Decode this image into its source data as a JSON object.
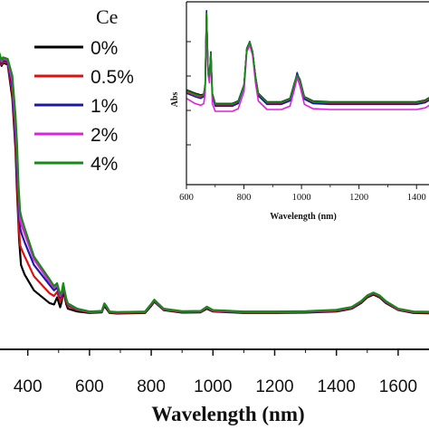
{
  "chart_data": [
    {
      "type": "line",
      "title": "",
      "xlabel": "Wavelength (nm)",
      "ylabel": "",
      "xlim": [
        310,
        1700
      ],
      "ylim": [
        0,
        1
      ],
      "x_ticks": [
        "400",
        "600",
        "800",
        "1000",
        "1200",
        "1400",
        "1600"
      ],
      "legend": {
        "title": "Ce",
        "placement": "top-left"
      },
      "series": [
        {
          "name": "0%",
          "color": "#000000",
          "x": [
            300,
            305,
            315,
            320,
            335,
            350,
            360,
            365,
            372,
            378,
            383,
            390,
            420,
            470,
            485,
            495,
            505,
            510,
            515,
            520,
            525,
            530,
            560,
            600,
            640,
            648,
            655,
            665,
            690,
            780,
            800,
            810,
            820,
            840,
            900,
            960,
            980,
            1000,
            1100,
            1200,
            1300,
            1400,
            1450,
            1480,
            1500,
            1520,
            1540,
            1560,
            1600,
            1650,
            1700
          ],
          "y": [
            0.92,
            0.93,
            0.895,
            0.905,
            0.9,
            0.78,
            0.6,
            0.45,
            0.28,
            0.19,
            0.175,
            0.155,
            0.1,
            0.055,
            0.05,
            0.075,
            0.04,
            0.06,
            0.1,
            0.075,
            0.05,
            0.035,
            0.025,
            0.02,
            0.022,
            0.045,
            0.035,
            0.02,
            0.018,
            0.02,
            0.045,
            0.06,
            0.05,
            0.03,
            0.021,
            0.022,
            0.035,
            0.025,
            0.02,
            0.02,
            0.021,
            0.025,
            0.035,
            0.055,
            0.075,
            0.085,
            0.075,
            0.055,
            0.03,
            0.02,
            0.019
          ]
        },
        {
          "name": "0.5%",
          "color": "#e01010",
          "x": [
            300,
            305,
            315,
            320,
            335,
            350,
            360,
            365,
            370,
            375,
            380,
            390,
            420,
            470,
            485,
            495,
            505,
            510,
            515,
            520,
            525,
            530,
            560,
            600,
            640,
            648,
            655,
            665,
            690,
            780,
            800,
            810,
            820,
            840,
            900,
            960,
            980,
            1000,
            1100,
            1200,
            1300,
            1400,
            1450,
            1480,
            1500,
            1520,
            1540,
            1560,
            1600,
            1650,
            1700
          ],
          "y": [
            0.925,
            0.935,
            0.9,
            0.91,
            0.905,
            0.8,
            0.63,
            0.5,
            0.34,
            0.26,
            0.245,
            0.22,
            0.15,
            0.09,
            0.08,
            0.095,
            0.06,
            0.075,
            0.11,
            0.085,
            0.06,
            0.045,
            0.03,
            0.022,
            0.024,
            0.05,
            0.04,
            0.022,
            0.02,
            0.022,
            0.048,
            0.063,
            0.052,
            0.032,
            0.023,
            0.024,
            0.038,
            0.027,
            0.022,
            0.022,
            0.023,
            0.027,
            0.037,
            0.058,
            0.078,
            0.088,
            0.078,
            0.058,
            0.032,
            0.022,
            0.021
          ]
        },
        {
          "name": "1%",
          "color": "#1a1aa8",
          "x": [
            300,
            305,
            315,
            320,
            335,
            350,
            360,
            365,
            370,
            375,
            380,
            390,
            420,
            470,
            485,
            495,
            505,
            510,
            515,
            520,
            525,
            530,
            560,
            600,
            640,
            648,
            655,
            665,
            690,
            780,
            800,
            810,
            820,
            840,
            900,
            960,
            980,
            1000,
            1100,
            1200,
            1300,
            1400,
            1450,
            1480,
            1500,
            1520,
            1540,
            1560,
            1600,
            1650,
            1700
          ],
          "y": [
            0.93,
            0.94,
            0.905,
            0.915,
            0.91,
            0.82,
            0.66,
            0.55,
            0.4,
            0.32,
            0.3,
            0.27,
            0.19,
            0.12,
            0.1,
            0.11,
            0.075,
            0.085,
            0.115,
            0.09,
            0.065,
            0.05,
            0.033,
            0.024,
            0.026,
            0.052,
            0.042,
            0.024,
            0.022,
            0.024,
            0.05,
            0.065,
            0.054,
            0.034,
            0.025,
            0.026,
            0.04,
            0.029,
            0.024,
            0.024,
            0.025,
            0.029,
            0.039,
            0.06,
            0.08,
            0.09,
            0.08,
            0.06,
            0.034,
            0.024,
            0.023
          ]
        },
        {
          "name": "2%",
          "color": "#e020e0",
          "x": [
            300,
            305,
            315,
            320,
            335,
            350,
            360,
            365,
            370,
            375,
            380,
            390,
            420,
            470,
            485,
            495,
            505,
            510,
            515,
            520,
            525,
            530,
            560,
            600,
            640,
            648,
            655,
            665,
            690,
            780,
            800,
            810,
            820,
            840,
            900,
            960,
            980,
            1000,
            1100,
            1200,
            1300,
            1400,
            1450,
            1480,
            1500,
            1520,
            1540,
            1560,
            1600,
            1650,
            1700
          ],
          "y": [
            0.935,
            0.945,
            0.91,
            0.92,
            0.915,
            0.84,
            0.69,
            0.58,
            0.44,
            0.35,
            0.33,
            0.3,
            0.21,
            0.13,
            0.11,
            0.12,
            0.08,
            0.09,
            0.12,
            0.092,
            0.067,
            0.052,
            0.034,
            0.024,
            0.026,
            0.053,
            0.043,
            0.024,
            0.022,
            0.024,
            0.051,
            0.066,
            0.055,
            0.034,
            0.025,
            0.026,
            0.041,
            0.029,
            0.024,
            0.024,
            0.025,
            0.03,
            0.04,
            0.061,
            0.081,
            0.091,
            0.081,
            0.061,
            0.034,
            0.024,
            0.023
          ]
        },
        {
          "name": "4%",
          "color": "#158a15",
          "x": [
            300,
            305,
            315,
            320,
            335,
            350,
            360,
            365,
            370,
            375,
            380,
            390,
            420,
            470,
            485,
            495,
            505,
            510,
            515,
            520,
            525,
            530,
            560,
            600,
            640,
            648,
            655,
            665,
            690,
            780,
            800,
            810,
            820,
            840,
            900,
            960,
            980,
            1000,
            1100,
            1200,
            1300,
            1400,
            1450,
            1480,
            1500,
            1520,
            1540,
            1560,
            1600,
            1650,
            1700
          ],
          "y": [
            0.94,
            0.95,
            0.915,
            0.925,
            0.92,
            0.86,
            0.72,
            0.62,
            0.47,
            0.38,
            0.355,
            0.32,
            0.22,
            0.14,
            0.115,
            0.125,
            0.085,
            0.095,
            0.125,
            0.095,
            0.07,
            0.054,
            0.035,
            0.025,
            0.027,
            0.054,
            0.044,
            0.025,
            0.023,
            0.025,
            0.052,
            0.067,
            0.056,
            0.035,
            0.026,
            0.027,
            0.042,
            0.03,
            0.025,
            0.025,
            0.026,
            0.031,
            0.041,
            0.062,
            0.082,
            0.092,
            0.082,
            0.062,
            0.035,
            0.025,
            0.024
          ]
        }
      ]
    },
    {
      "type": "line",
      "title": "",
      "xlabel": "Wavelength (nm)",
      "ylabel": "Abs",
      "xlim": [
        600,
        1500
      ],
      "ylim": [
        0,
        1
      ],
      "x_ticks": [
        "600",
        "800",
        "1000",
        "1200",
        "1400"
      ],
      "legend": null,
      "series": [
        {
          "color": "#000000",
          "x": [
            600,
            630,
            650,
            660,
            665,
            670,
            675,
            680,
            685,
            690,
            700,
            760,
            780,
            800,
            810,
            820,
            830,
            840,
            850,
            880,
            930,
            960,
            975,
            985,
            995,
            1010,
            1040,
            1100,
            1200,
            1300,
            1400,
            1430,
            1450,
            1470,
            1490,
            1500
          ],
          "y": [
            0.52,
            0.5,
            0.49,
            0.495,
            0.55,
            0.97,
            0.65,
            0.6,
            0.74,
            0.5,
            0.44,
            0.44,
            0.455,
            0.55,
            0.76,
            0.8,
            0.74,
            0.6,
            0.5,
            0.45,
            0.45,
            0.47,
            0.56,
            0.61,
            0.58,
            0.48,
            0.455,
            0.45,
            0.45,
            0.45,
            0.45,
            0.46,
            0.48,
            0.56,
            0.72,
            0.85
          ]
        },
        {
          "color": "#e01010",
          "x": [
            600,
            630,
            650,
            660,
            665,
            670,
            675,
            680,
            685,
            690,
            700,
            760,
            780,
            800,
            810,
            820,
            830,
            840,
            850,
            880,
            930,
            960,
            975,
            985,
            995,
            1010,
            1040,
            1100,
            1200,
            1300,
            1400,
            1430,
            1450,
            1470,
            1490,
            1500
          ],
          "y": [
            0.51,
            0.49,
            0.48,
            0.485,
            0.54,
            0.96,
            0.64,
            0.59,
            0.73,
            0.49,
            0.432,
            0.432,
            0.447,
            0.545,
            0.755,
            0.795,
            0.735,
            0.595,
            0.492,
            0.442,
            0.442,
            0.462,
            0.552,
            0.602,
            0.572,
            0.472,
            0.447,
            0.442,
            0.442,
            0.442,
            0.442,
            0.452,
            0.472,
            0.552,
            0.712,
            0.842
          ]
        },
        {
          "color": "#1a1aa8",
          "x": [
            600,
            630,
            650,
            660,
            665,
            670,
            675,
            680,
            685,
            690,
            700,
            760,
            780,
            800,
            810,
            820,
            830,
            840,
            850,
            880,
            930,
            960,
            975,
            985,
            995,
            1010,
            1040,
            1100,
            1200,
            1300,
            1400,
            1430,
            1450,
            1470,
            1490,
            1500
          ],
          "y": [
            0.5,
            0.48,
            0.47,
            0.48,
            0.54,
            0.98,
            0.64,
            0.59,
            0.74,
            0.48,
            0.425,
            0.425,
            0.44,
            0.54,
            0.76,
            0.8,
            0.74,
            0.59,
            0.485,
            0.435,
            0.435,
            0.455,
            0.55,
            0.62,
            0.57,
            0.465,
            0.44,
            0.435,
            0.435,
            0.435,
            0.435,
            0.445,
            0.465,
            0.545,
            0.705,
            0.835
          ]
        },
        {
          "color": "#e020e0",
          "x": [
            600,
            630,
            650,
            660,
            665,
            670,
            675,
            680,
            685,
            690,
            700,
            760,
            780,
            800,
            810,
            820,
            830,
            840,
            850,
            880,
            930,
            960,
            975,
            985,
            995,
            1010,
            1040,
            1100,
            1200,
            1300,
            1400,
            1430,
            1450,
            1470,
            1490,
            1500
          ],
          "y": [
            0.47,
            0.44,
            0.43,
            0.44,
            0.5,
            0.95,
            0.61,
            0.56,
            0.71,
            0.44,
            0.395,
            0.395,
            0.41,
            0.51,
            0.74,
            0.78,
            0.72,
            0.56,
            0.455,
            0.405,
            0.405,
            0.425,
            0.52,
            0.59,
            0.54,
            0.435,
            0.41,
            0.405,
            0.405,
            0.405,
            0.405,
            0.415,
            0.435,
            0.515,
            0.675,
            0.805
          ]
        },
        {
          "color": "#158a15",
          "x": [
            600,
            630,
            650,
            660,
            665,
            670,
            675,
            680,
            685,
            690,
            700,
            760,
            780,
            800,
            810,
            820,
            830,
            840,
            850,
            880,
            930,
            960,
            975,
            985,
            995,
            1010,
            1040,
            1100,
            1200,
            1300,
            1400,
            1430,
            1450,
            1470,
            1490,
            1500
          ],
          "y": [
            0.515,
            0.495,
            0.485,
            0.49,
            0.545,
            0.965,
            0.645,
            0.595,
            0.735,
            0.495,
            0.437,
            0.437,
            0.452,
            0.548,
            0.758,
            0.798,
            0.738,
            0.598,
            0.497,
            0.447,
            0.447,
            0.467,
            0.557,
            0.605,
            0.575,
            0.477,
            0.452,
            0.447,
            0.447,
            0.447,
            0.447,
            0.457,
            0.477,
            0.557,
            0.717,
            0.847
          ]
        }
      ]
    }
  ]
}
